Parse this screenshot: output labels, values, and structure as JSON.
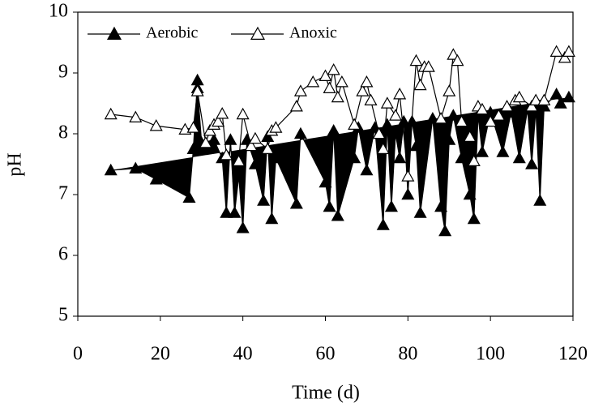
{
  "chart_data": {
    "type": "line",
    "x_label": "Time (d)",
    "y_label": "pH",
    "xlim": [
      0,
      120
    ],
    "xticks": [
      0,
      20,
      40,
      60,
      80,
      100,
      120
    ],
    "ylim": [
      5,
      10
    ],
    "yticks": [
      5,
      6,
      7,
      8,
      9,
      10
    ],
    "legend": "top-left",
    "series": [
      {
        "name": "Aerobic",
        "color": "#000000",
        "marker": "filled-triangle",
        "x": [
          8,
          14,
          19,
          27,
          28,
          29,
          29,
          30,
          33,
          35,
          36,
          37,
          38,
          39,
          40,
          41,
          43,
          45,
          46,
          47,
          48,
          53,
          54,
          60,
          61,
          62,
          63,
          67,
          68,
          70,
          72,
          74,
          75,
          76,
          77,
          78,
          79,
          80,
          81,
          82,
          83,
          86,
          88,
          89,
          90,
          91,
          93,
          95,
          96,
          97,
          98,
          100,
          103,
          105,
          107,
          109,
          110,
          111,
          112,
          113,
          116,
          117,
          119
        ],
        "values": [
          7.4,
          7.43,
          7.25,
          6.95,
          7.75,
          8.88,
          8.75,
          7.85,
          7.9,
          7.6,
          6.7,
          7.9,
          6.7,
          7.3,
          6.45,
          7.9,
          7.5,
          6.9,
          7.95,
          6.6,
          7.6,
          6.85,
          8.0,
          7.2,
          6.8,
          8.05,
          6.65,
          7.6,
          8.1,
          7.4,
          8.1,
          6.5,
          8.15,
          6.8,
          8.0,
          7.6,
          8.2,
          7.0,
          8.2,
          7.8,
          6.7,
          8.25,
          6.8,
          6.4,
          7.9,
          8.3,
          7.6,
          7.0,
          6.6,
          8.3,
          7.7,
          8.35,
          7.7,
          8.35,
          7.6,
          8.4,
          7.5,
          8.4,
          6.9,
          8.45,
          8.65,
          8.5,
          8.6
        ]
      },
      {
        "name": "Anoxic",
        "color": "#000000",
        "marker": "open-triangle",
        "x": [
          8,
          14,
          19,
          26,
          28,
          29,
          31,
          32,
          33,
          34,
          35,
          36,
          39,
          40,
          42,
          43,
          46,
          47,
          48,
          53,
          54,
          57,
          60,
          61,
          62,
          63,
          64,
          67,
          69,
          70,
          71,
          73,
          74,
          75,
          77,
          78,
          80,
          82,
          83,
          84,
          85,
          88,
          90,
          91,
          92,
          93,
          95,
          96,
          97,
          98,
          100,
          102,
          104,
          106,
          107,
          110,
          111,
          113,
          116,
          118,
          119
        ],
        "values": [
          8.32,
          8.27,
          8.13,
          8.07,
          8.1,
          8.7,
          7.85,
          8.05,
          8.15,
          8.2,
          8.33,
          7.65,
          7.55,
          8.32,
          7.8,
          7.92,
          7.75,
          8.05,
          8.1,
          8.45,
          8.7,
          8.85,
          8.95,
          8.75,
          9.05,
          8.6,
          8.85,
          8.15,
          8.7,
          8.85,
          8.55,
          8.0,
          7.75,
          8.5,
          8.3,
          8.65,
          7.3,
          9.2,
          8.8,
          9.1,
          9.1,
          8.25,
          8.7,
          9.3,
          9.2,
          8.2,
          7.95,
          7.55,
          8.45,
          8.4,
          8.2,
          8.3,
          8.45,
          8.55,
          8.6,
          8.45,
          8.55,
          8.55,
          9.35,
          9.25,
          9.35
        ]
      }
    ]
  }
}
